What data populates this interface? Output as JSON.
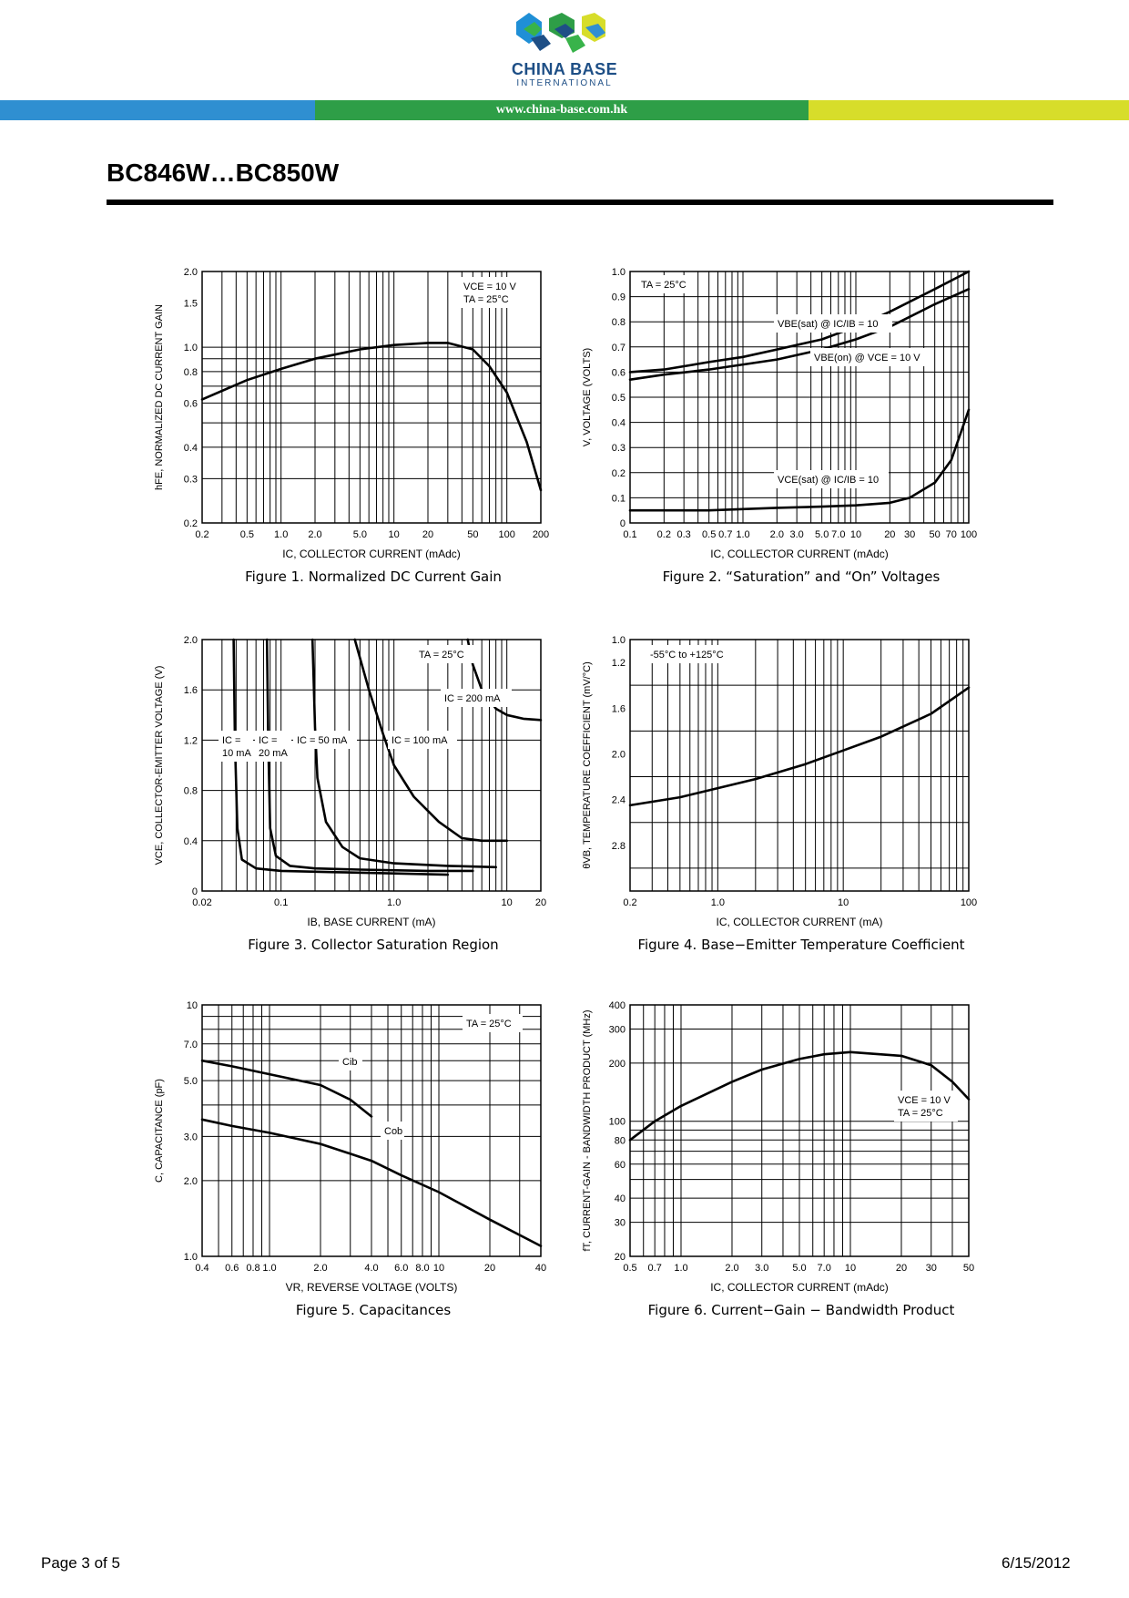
{
  "header": {
    "logo_name": "CHINA BASE",
    "logo_sub": "INTERNATIONAL",
    "url": "www.china-base.com.hk",
    "band_colors": [
      "#2f8fd1",
      "#2e9e47",
      "#d7dd2a"
    ]
  },
  "doc_title": "BC846W…BC850W",
  "figures": [
    {
      "id": 1,
      "caption": "Figure 1. Normalized DC Current Gain",
      "ylabel": "hFE, NORMALIZED DC CURRENT GAIN",
      "xlabel": "IC, COLLECTOR CURRENT (mAdc)",
      "xticks": [
        "0.2",
        "0.5",
        "1.0",
        "2.0",
        "5.0",
        "10",
        "20",
        "50",
        "100",
        "200"
      ],
      "yticks": [
        "2.0",
        "1.5",
        "1.0",
        "0.8",
        "0.6",
        "0.4",
        "0.3",
        "0.2"
      ],
      "annotation": [
        "VCE = 10 V",
        "TA = 25°C"
      ]
    },
    {
      "id": 2,
      "caption": "Figure 2. “Saturation” and “On” Voltages",
      "ylabel": "V, VOLTAGE (VOLTS)",
      "xlabel": "IC, COLLECTOR CURRENT (mAdc)",
      "xticks": [
        "0.1",
        "0.2",
        "0.3",
        "0.5",
        "0.7",
        "1.0",
        "2.0",
        "3.0",
        "5.0",
        "7.0",
        "10",
        "20",
        "30",
        "50",
        "70",
        "100"
      ],
      "yticks": [
        "1.0",
        "0.9",
        "0.8",
        "0.7",
        "0.6",
        "0.5",
        "0.4",
        "0.3",
        "0.2",
        "0.1",
        "0"
      ],
      "annotation": [
        "TA = 25°C"
      ],
      "curve_labels": [
        "VBE(sat) @ IC/IB = 10",
        "VBE(on) @ VCE = 10 V",
        "VCE(sat) @ IC/IB = 10"
      ]
    },
    {
      "id": 3,
      "caption": "Figure 3. Collector Saturation Region",
      "ylabel": "VCE, COLLECTOR-EMITTER VOLTAGE (V)",
      "xlabel": "IB, BASE CURRENT (mA)",
      "xticks": [
        "0.02",
        "0.1",
        "1.0",
        "10",
        "20"
      ],
      "yticks": [
        "2.0",
        "1.6",
        "1.2",
        "0.8",
        "0.4",
        "0"
      ],
      "annotation": [
        "TA = 25°C"
      ],
      "curve_labels": [
        "IC = 10 mA",
        "IC = 20 mA",
        "IC = 50 mA",
        "IC = 100 mA",
        "IC = 200 mA"
      ]
    },
    {
      "id": 4,
      "caption": "Figure 4. Base−Emitter Temperature Coefficient",
      "ylabel": "θVB, TEMPERATURE COEFFICIENT (mV/°C)",
      "xlabel": "IC, COLLECTOR CURRENT (mA)",
      "xticks": [
        "0.2",
        "1.0",
        "10",
        "100"
      ],
      "yticks": [
        "1.0",
        "1.2",
        "1.6",
        "2.0",
        "2.4",
        "2.8"
      ],
      "annotation": [
        "-55°C to +125°C"
      ]
    },
    {
      "id": 5,
      "caption": "Figure 5. Capacitances",
      "ylabel": "C, CAPACITANCE (pF)",
      "xlabel": "VR, REVERSE VOLTAGE (VOLTS)",
      "xticks": [
        "0.4",
        "0.6",
        "0.8",
        "1.0",
        "2.0",
        "4.0",
        "6.0",
        "8.0",
        "10",
        "20",
        "40"
      ],
      "yticks": [
        "10",
        "7.0",
        "5.0",
        "3.0",
        "2.0",
        "1.0"
      ],
      "annotation": [
        "TA = 25°C"
      ],
      "curve_labels": [
        "Cib",
        "Cob"
      ]
    },
    {
      "id": 6,
      "caption": "Figure 6. Current−Gain − Bandwidth Product",
      "ylabel": "fT, CURRENT-GAIN - BANDWIDTH PRODUCT (MHz)",
      "xlabel": "IC, COLLECTOR CURRENT (mAdc)",
      "xticks": [
        "0.5",
        "0.7",
        "1.0",
        "2.0",
        "3.0",
        "5.0",
        "7.0",
        "10",
        "20",
        "30",
        "50"
      ],
      "yticks": [
        "400",
        "300",
        "200",
        "100",
        "80",
        "60",
        "40",
        "30",
        "20"
      ],
      "annotation": [
        "VCE = 10 V",
        "TA = 25°C"
      ]
    }
  ],
  "chart_data": [
    {
      "type": "line",
      "xscale": "log",
      "yscale": "log",
      "xlabel": "IC, COLLECTOR CURRENT (mAdc)",
      "ylabel": "hFE, NORMALIZED DC CURRENT GAIN",
      "xlim": [
        0.2,
        200
      ],
      "ylim": [
        0.2,
        2.0
      ],
      "series": [
        {
          "x": [
            0.2,
            0.5,
            1.0,
            2.0,
            5.0,
            10,
            20,
            30,
            50,
            70,
            100,
            150,
            200
          ],
          "y": [
            0.62,
            0.74,
            0.82,
            0.9,
            0.98,
            1.02,
            1.04,
            1.04,
            0.98,
            0.84,
            0.66,
            0.42,
            0.27
          ]
        }
      ]
    },
    {
      "type": "line",
      "xscale": "log",
      "yscale": "linear",
      "xlabel": "IC, COLLECTOR CURRENT (mAdc)",
      "ylabel": "V, VOLTAGE (VOLTS)",
      "xlim": [
        0.1,
        100
      ],
      "ylim": [
        0,
        1.0
      ],
      "series": [
        {
          "name": "VBE(sat) @ IC/IB = 10",
          "x": [
            0.1,
            0.2,
            0.5,
            1.0,
            2.0,
            5.0,
            10,
            20,
            50,
            100
          ],
          "y": [
            0.6,
            0.61,
            0.64,
            0.66,
            0.69,
            0.73,
            0.78,
            0.84,
            0.93,
            1.0
          ]
        },
        {
          "name": "VBE(on) @ VCE = 10 V",
          "x": [
            0.1,
            0.2,
            0.5,
            1.0,
            2.0,
            5.0,
            10,
            20,
            50,
            100
          ],
          "y": [
            0.57,
            0.59,
            0.61,
            0.63,
            0.65,
            0.69,
            0.73,
            0.78,
            0.87,
            0.93
          ]
        },
        {
          "name": "VCE(sat) @ IC/IB = 10",
          "x": [
            0.1,
            0.5,
            1.0,
            2.0,
            5.0,
            10,
            20,
            30,
            50,
            70,
            100
          ],
          "y": [
            0.05,
            0.05,
            0.055,
            0.06,
            0.065,
            0.07,
            0.08,
            0.1,
            0.16,
            0.25,
            0.45
          ]
        }
      ]
    },
    {
      "type": "line",
      "xscale": "log",
      "yscale": "linear",
      "xlabel": "IB, BASE CURRENT (mA)",
      "ylabel": "VCE, COLLECTOR-EMITTER VOLTAGE (V)",
      "xlim": [
        0.02,
        20
      ],
      "ylim": [
        0,
        2.0
      ],
      "series": [
        {
          "name": "IC = 10 mA",
          "x": [
            0.038,
            0.039,
            0.041,
            0.045,
            0.06,
            0.1,
            0.3,
            1.0,
            3.0
          ],
          "y": [
            2.0,
            1.2,
            0.5,
            0.25,
            0.18,
            0.16,
            0.15,
            0.14,
            0.13
          ]
        },
        {
          "name": "IC = 20 mA",
          "x": [
            0.075,
            0.077,
            0.08,
            0.09,
            0.12,
            0.2,
            0.5,
            2.0,
            5.0
          ],
          "y": [
            2.0,
            1.2,
            0.5,
            0.28,
            0.2,
            0.18,
            0.17,
            0.16,
            0.16
          ]
        },
        {
          "name": "IC = 50 mA",
          "x": [
            0.19,
            0.2,
            0.21,
            0.25,
            0.35,
            0.5,
            1.0,
            3.0,
            8.0
          ],
          "y": [
            2.0,
            1.3,
            0.9,
            0.55,
            0.35,
            0.26,
            0.22,
            0.2,
            0.19
          ]
        },
        {
          "name": "IC = 100 mA",
          "x": [
            0.45,
            0.6,
            0.8,
            1.0,
            1.5,
            2.5,
            4.0,
            6.0,
            10
          ],
          "y": [
            2.0,
            1.6,
            1.25,
            1.0,
            0.75,
            0.55,
            0.42,
            0.4,
            0.4
          ]
        },
        {
          "name": "IC = 200 mA",
          "x": [
            4.5,
            5.0,
            6.0,
            8.0,
            10,
            14,
            20
          ],
          "y": [
            2.0,
            1.8,
            1.6,
            1.45,
            1.4,
            1.37,
            1.36
          ]
        }
      ]
    },
    {
      "type": "line",
      "xscale": "log",
      "yscale": "linear",
      "xlabel": "IC, COLLECTOR CURRENT (mA)",
      "ylabel": "θVB, TEMPERATURE COEFFICIENT (mV/°C)",
      "xlim": [
        0.2,
        100
      ],
      "ylim": [
        1.0,
        3.2
      ],
      "series": [
        {
          "x": [
            0.2,
            0.5,
            1.0,
            2.0,
            5.0,
            10,
            20,
            50,
            100
          ],
          "y": [
            2.45,
            2.38,
            2.3,
            2.22,
            2.09,
            1.97,
            1.85,
            1.65,
            1.42
          ]
        }
      ]
    },
    {
      "type": "line",
      "xscale": "log",
      "yscale": "log",
      "xlabel": "VR, REVERSE VOLTAGE (VOLTS)",
      "ylabel": "C, CAPACITANCE (pF)",
      "xlim": [
        0.4,
        40
      ],
      "ylim": [
        1.0,
        10
      ],
      "series": [
        {
          "name": "Cib",
          "x": [
            0.4,
            0.6,
            1.0,
            2.0,
            3.0,
            4.0
          ],
          "y": [
            6.0,
            5.7,
            5.3,
            4.8,
            4.2,
            3.6
          ]
        },
        {
          "name": "Cob",
          "x": [
            0.4,
            0.6,
            1.0,
            2.0,
            4.0,
            6.0,
            10,
            20,
            40
          ],
          "y": [
            3.5,
            3.3,
            3.1,
            2.8,
            2.4,
            2.1,
            1.8,
            1.4,
            1.1
          ]
        }
      ]
    },
    {
      "type": "line",
      "xscale": "log",
      "yscale": "log",
      "xlabel": "IC, COLLECTOR CURRENT (mAdc)",
      "ylabel": "fT, CURRENT-GAIN - BANDWIDTH PRODUCT (MHz)",
      "xlim": [
        0.5,
        50
      ],
      "ylim": [
        20,
        400
      ],
      "series": [
        {
          "x": [
            0.5,
            0.7,
            1.0,
            2.0,
            3.0,
            5.0,
            7.0,
            10,
            20,
            30,
            40,
            50
          ],
          "y": [
            80,
            100,
            120,
            160,
            185,
            210,
            222,
            228,
            218,
            195,
            160,
            130
          ]
        }
      ]
    }
  ],
  "footer": {
    "page": "Page 3 of 5",
    "date": "6/15/2012"
  }
}
